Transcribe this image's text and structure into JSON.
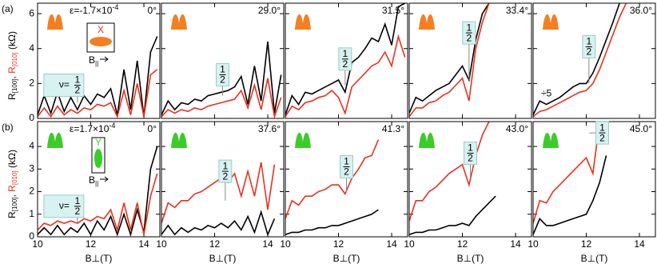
{
  "chart_data": [
    {
      "type": "line",
      "panel_label": "(a)",
      "angle": "0°",
      "strain": {
        "base": "ε=-1.7×10",
        "exp": "-4"
      },
      "icon_color": "#f57f20",
      "inset": {
        "axis_letter": "X",
        "field": "B",
        "field_sub": "||"
      },
      "nu": "ν=",
      "half": {
        "top": "1",
        "bottom": "2"
      },
      "ylabel": {
        "r1": "R",
        "s1": "[100]",
        "comma": ", ",
        "r2": "R",
        "s2": "[010]",
        "unit": " (kΩ)"
      },
      "x": [
        10,
        10.25,
        10.5,
        10.75,
        11,
        11.25,
        11.5,
        11.75,
        12,
        12.25,
        12.5,
        12.75,
        13,
        13.25,
        13.5,
        13.75,
        14,
        14.25,
        14.5
      ],
      "series": [
        {
          "color": "#000000",
          "values": [
            0.2,
            1.3,
            0.3,
            1.5,
            0.4,
            1.2,
            0.5,
            1.3,
            0.8,
            1.4,
            1.2,
            1.7,
            0.2,
            2.8,
            0.5,
            3.3,
            0.1,
            3.8,
            4.7
          ]
        },
        {
          "color": "#e8321e",
          "values": [
            0.1,
            0.6,
            0.1,
            0.7,
            0.2,
            0.5,
            0.3,
            0.6,
            0.5,
            0.8,
            0.7,
            0.9,
            0.1,
            1.6,
            0.2,
            2.0,
            0.1,
            2.5,
            2.8
          ]
        }
      ],
      "xlim": [
        10,
        14.6
      ],
      "ylim": [
        0,
        6.6
      ],
      "xticks": [
        10,
        12,
        14
      ],
      "yticks": [
        0,
        2,
        4,
        6
      ]
    },
    {
      "type": "line",
      "angle": "29.0°",
      "icon_color": "#f57f20",
      "half": {
        "top": "1",
        "bottom": "2"
      },
      "x": [
        10,
        10.25,
        10.5,
        10.75,
        11,
        11.25,
        11.5,
        11.75,
        12,
        12.25,
        12.5,
        12.75,
        13,
        13.25,
        13.5,
        13.75,
        14,
        14.25,
        14.5
      ],
      "series": [
        {
          "color": "#000000",
          "values": [
            0.2,
            1.0,
            0.5,
            0.9,
            0.8,
            1.1,
            1.0,
            1.3,
            1.4,
            1.5,
            1.6,
            1.8,
            2.4,
            0.8,
            3.0,
            1.0,
            4.4,
            0.3,
            2.5
          ]
        },
        {
          "color": "#e8321e",
          "values": [
            0.1,
            0.5,
            0.3,
            0.5,
            0.4,
            0.6,
            0.5,
            0.7,
            0.8,
            0.9,
            1.0,
            1.1,
            1.6,
            0.6,
            1.9,
            0.5,
            2.3,
            0.1,
            1.2
          ]
        }
      ],
      "xlim": [
        10,
        14.6
      ],
      "ylim": [
        0,
        6.6
      ],
      "xticks": [
        10,
        12,
        14
      ],
      "yticks": [
        0,
        2,
        4,
        6
      ]
    },
    {
      "type": "line",
      "angle": "31.5°",
      "icon_color": "#f57f20",
      "half": {
        "top": "1",
        "bottom": "2"
      },
      "x": [
        10,
        10.25,
        10.5,
        10.75,
        11,
        11.25,
        11.5,
        11.75,
        12,
        12.25,
        12.5,
        12.75,
        13,
        13.25,
        13.5,
        13.75,
        14,
        14.25,
        14.5
      ],
      "series": [
        {
          "color": "#000000",
          "values": [
            0.2,
            1.3,
            0.8,
            1.5,
            1.4,
            1.6,
            1.8,
            2.0,
            2.2,
            1.5,
            3.2,
            3.5,
            4.0,
            4.6,
            4.4,
            5.4,
            4.2,
            6.4,
            6.6
          ]
        },
        {
          "color": "#e8321e",
          "values": [
            0.1,
            0.7,
            0.5,
            0.9,
            1.0,
            1.2,
            1.3,
            1.6,
            1.2,
            0.3,
            1.8,
            2.2,
            2.6,
            3.0,
            3.2,
            3.8,
            3.0,
            4.7,
            3.5
          ]
        }
      ],
      "xlim": [
        10,
        14.6
      ],
      "ylim": [
        0,
        6.6
      ],
      "xticks": [
        10,
        12,
        14
      ],
      "yticks": [
        0,
        2,
        4,
        6
      ]
    },
    {
      "type": "line",
      "angle": "33.4°",
      "icon_color": "#f57f20",
      "half": {
        "top": "1",
        "bottom": "2"
      },
      "x": [
        10,
        10.25,
        10.5,
        10.75,
        11,
        11.25,
        11.5,
        11.75,
        12,
        12.25,
        12.5,
        12.75,
        13,
        13.25,
        13.5,
        13.75,
        14,
        14.25,
        14.5
      ],
      "series": [
        {
          "color": "#000000",
          "values": [
            0.3,
            1.2,
            1.0,
            1.3,
            1.6,
            1.8,
            2.0,
            2.5,
            3.0,
            2.2,
            4.5,
            6.0,
            6.6,
            null,
            null,
            null,
            null,
            null,
            null
          ]
        },
        {
          "color": "#e8321e",
          "values": [
            0.1,
            0.6,
            0.6,
            0.9,
            1.0,
            1.3,
            1.5,
            1.9,
            2.3,
            1.0,
            4.0,
            5.5,
            6.6,
            null,
            null,
            null,
            null,
            null,
            null
          ]
        }
      ],
      "xlim": [
        10,
        14.6
      ],
      "ylim": [
        0,
        6.6
      ],
      "xticks": [
        10,
        12,
        14
      ],
      "yticks": [
        0,
        2,
        4,
        6
      ]
    },
    {
      "type": "line",
      "angle": "36.0°",
      "icon_color": "#f57f20",
      "half": {
        "top": "1",
        "bottom": "2"
      },
      "divisor": "÷5",
      "x": [
        10,
        10.25,
        10.5,
        10.75,
        11,
        11.25,
        11.5,
        11.75,
        12,
        12.25,
        12.5,
        12.75,
        13,
        13.25,
        13.5,
        13.75,
        14,
        14.25,
        14.5
      ],
      "series": [
        {
          "color": "#000000",
          "values": [
            0.2,
            1.0,
            0.8,
            1.0,
            1.2,
            1.5,
            1.8,
            2.0,
            2.0,
            2.6,
            3.5,
            4.5,
            5.5,
            6.6,
            null,
            null,
            null,
            null,
            null
          ]
        },
        {
          "color": "#e8321e",
          "values": [
            0.1,
            0.4,
            0.5,
            0.7,
            0.9,
            1.1,
            1.3,
            1.5,
            1.6,
            2.0,
            2.8,
            3.8,
            4.8,
            5.8,
            6.6,
            null,
            null,
            null,
            null
          ]
        }
      ],
      "xlim": [
        10,
        14.6
      ],
      "ylim": [
        0,
        6.6
      ],
      "xticks": [
        10,
        12,
        14
      ],
      "yticks": [
        0,
        2,
        4,
        6
      ]
    },
    {
      "type": "line",
      "panel_label": "(b)",
      "angle": "0°",
      "strain": {
        "base": "ε=1.7×10",
        "exp": "-4"
      },
      "icon_color": "#3ccc2a",
      "inset": {
        "axis_letter": "Y",
        "field": "B",
        "field_sub": "||"
      },
      "nu": "ν=",
      "half": {
        "top": "1",
        "bottom": "2"
      },
      "xlabel": "B⊥(T)",
      "ylabel": {
        "r1": "R",
        "s1": "[100]",
        "comma": ", ",
        "r2": "R",
        "s2": "[010]",
        "unit": " (kΩ)"
      },
      "x": [
        10,
        10.25,
        10.5,
        10.75,
        11,
        11.25,
        11.5,
        11.75,
        12,
        12.25,
        12.5,
        12.75,
        13,
        13.25,
        13.5,
        13.75,
        14,
        14.25,
        14.5
      ],
      "series": [
        {
          "color": "#000000",
          "values": [
            0.1,
            0.4,
            0.1,
            0.5,
            0.1,
            0.4,
            0.2,
            0.6,
            0.1,
            0.7,
            0.3,
            0.9,
            0.1,
            1.0,
            0.1,
            1.2,
            0.2,
            3.0,
            4.0
          ]
        },
        {
          "color": "#e8321e",
          "values": [
            0.3,
            0.6,
            0.5,
            0.7,
            0.6,
            0.7,
            0.6,
            0.8,
            0.7,
            0.9,
            0.8,
            1.2,
            0.3,
            1.5,
            0.3,
            1.5,
            0.1,
            1.8,
            2.8
          ]
        }
      ],
      "xlim": [
        10,
        14.6
      ],
      "ylim": [
        0,
        5.1
      ],
      "xticks": [
        10,
        12,
        14
      ],
      "yticks": [
        0,
        1,
        2,
        3,
        4
      ]
    },
    {
      "type": "line",
      "angle": "37.6°",
      "icon_color": "#3ccc2a",
      "half": {
        "top": "1",
        "bottom": "2"
      },
      "xlabel": "B⊥(T)",
      "x": [
        10,
        10.25,
        10.5,
        10.75,
        11,
        11.25,
        11.5,
        11.75,
        12,
        12.25,
        12.5,
        12.75,
        13,
        13.25,
        13.5,
        13.75,
        14,
        14.25,
        14.5
      ],
      "series": [
        {
          "color": "#000000",
          "values": [
            0.1,
            0.5,
            0.1,
            0.4,
            0.2,
            0.4,
            0.3,
            0.5,
            0.4,
            0.6,
            0.4,
            0.7,
            0.3,
            0.9,
            0.2,
            1.1,
            0.1,
            0.8,
            null
          ]
        },
        {
          "color": "#e8321e",
          "values": [
            0.6,
            1.5,
            1.3,
            1.6,
            1.6,
            1.9,
            2.0,
            2.2,
            2.4,
            2.6,
            2.4,
            2.8,
            1.8,
            2.9,
            1.8,
            3.3,
            1.2,
            3.2,
            null
          ]
        }
      ],
      "xlim": [
        10,
        14.6
      ],
      "ylim": [
        0,
        5.1
      ],
      "xticks": [
        10,
        12,
        14
      ],
      "yticks": [
        0,
        1,
        2,
        3,
        4
      ]
    },
    {
      "type": "line",
      "angle": "41.3°",
      "icon_color": "#3ccc2a",
      "half": {
        "top": "1",
        "bottom": "2"
      },
      "xlabel": "B⊥(T)",
      "x": [
        10,
        10.25,
        10.5,
        10.75,
        11,
        11.25,
        11.5,
        11.75,
        12,
        12.25,
        12.5,
        12.75,
        13,
        13.25,
        13.5,
        13.75,
        14,
        14.25,
        14.5
      ],
      "series": [
        {
          "color": "#000000",
          "values": [
            0.1,
            0.2,
            0.2,
            0.3,
            0.3,
            0.4,
            0.4,
            0.5,
            0.5,
            0.6,
            0.7,
            0.8,
            0.9,
            1.0,
            1.2,
            null,
            null,
            null,
            null
          ]
        },
        {
          "color": "#e8321e",
          "values": [
            0.8,
            1.6,
            1.4,
            1.8,
            1.8,
            2.0,
            2.1,
            2.3,
            2.3,
            1.9,
            2.6,
            3.0,
            3.5,
            3.6,
            4.3,
            null,
            null,
            null,
            null
          ]
        }
      ],
      "xlim": [
        10,
        14.6
      ],
      "ylim": [
        0,
        5.1
      ],
      "xticks": [
        10,
        12,
        14
      ],
      "yticks": [
        0,
        1,
        2,
        3,
        4
      ]
    },
    {
      "type": "line",
      "angle": "43.0°",
      "icon_color": "#3ccc2a",
      "half": {
        "top": "1",
        "bottom": "2"
      },
      "xlabel": "B⊥(T)",
      "x": [
        10,
        10.25,
        10.5,
        10.75,
        11,
        11.25,
        11.5,
        11.75,
        12,
        12.25,
        12.5,
        12.75,
        13,
        13.25,
        13.5,
        13.75,
        14,
        14.25,
        14.5
      ],
      "series": [
        {
          "color": "#000000",
          "values": [
            0.1,
            0.2,
            0.2,
            0.3,
            0.3,
            0.4,
            0.5,
            0.5,
            0.6,
            0.5,
            0.9,
            1.2,
            1.5,
            1.8,
            null,
            null,
            null,
            null,
            null
          ]
        },
        {
          "color": "#e8321e",
          "values": [
            0.7,
            1.6,
            1.6,
            2.0,
            2.2,
            2.5,
            2.8,
            3.0,
            3.2,
            2.3,
            3.6,
            4.5,
            5.1,
            null,
            null,
            null,
            null,
            null,
            null
          ]
        }
      ],
      "xlim": [
        10,
        14.6
      ],
      "ylim": [
        0,
        5.1
      ],
      "xticks": [
        10,
        12,
        14
      ],
      "yticks": [
        0,
        1,
        2,
        3,
        4
      ]
    },
    {
      "type": "line",
      "angle": "45.0°",
      "icon_color": "#3ccc2a",
      "half": {
        "top": "1",
        "bottom": "2"
      },
      "xlabel": "B⊥(T)",
      "x": [
        10,
        10.25,
        10.5,
        10.75,
        11,
        11.25,
        11.5,
        11.75,
        12,
        12.25,
        12.5,
        12.75,
        13,
        13.25,
        13.5,
        13.75,
        14,
        14.25,
        14.5
      ],
      "series": [
        {
          "color": "#000000",
          "values": [
            0.1,
            0.8,
            0.5,
            0.5,
            0.6,
            0.7,
            0.8,
            0.9,
            1.0,
            1.6,
            2.4,
            3.6,
            null,
            null,
            null,
            null,
            null,
            null,
            null
          ]
        },
        {
          "color": "#e8321e",
          "values": [
            0.6,
            1.6,
            1.5,
            2.0,
            2.3,
            2.6,
            2.9,
            3.2,
            3.5,
            2.8,
            5.1,
            null,
            null,
            null,
            null,
            null,
            null,
            null,
            null
          ]
        }
      ],
      "xlim": [
        10,
        14.6
      ],
      "ylim": [
        0,
        5.1
      ],
      "xticks": [
        10,
        12,
        14
      ],
      "yticks": [
        0,
        1,
        2,
        3,
        4
      ]
    }
  ]
}
